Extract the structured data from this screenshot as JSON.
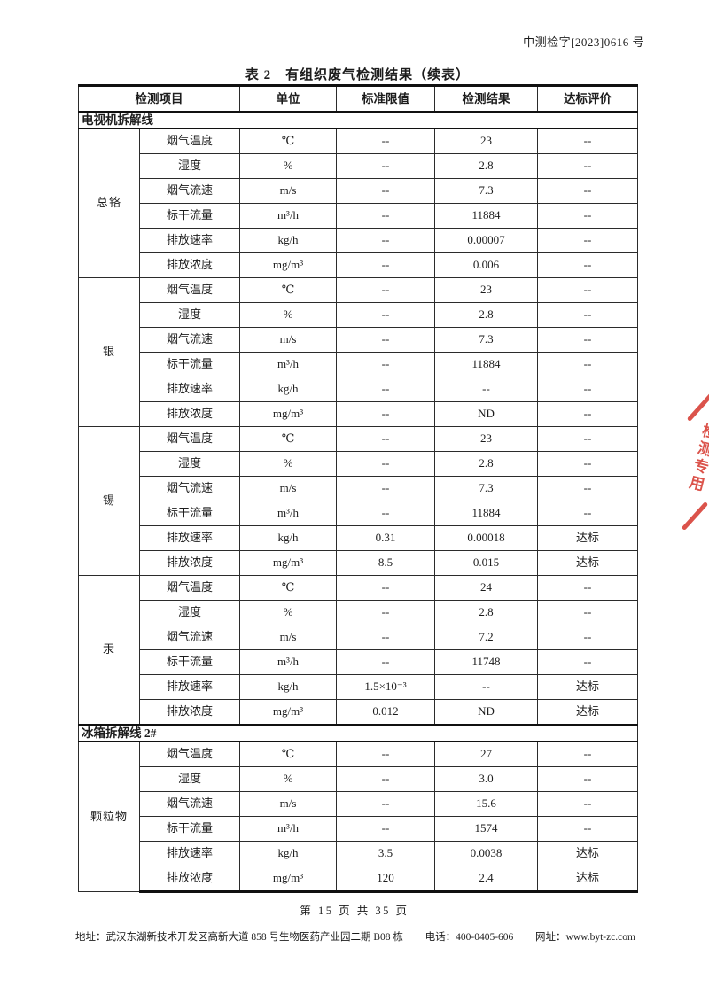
{
  "page": {
    "doc_number": "中测检字[2023]0616 号",
    "title": "表 2　有组织废气检测结果（续表）",
    "page_footer": "第 15 页 共 35 页",
    "contact": {
      "address": "地址：武汉东湖新技术开发区高新大道 858 号生物医药产业园二期 B08 栋",
      "phone": "电话：400-0405-606",
      "website": "网址：www.byt-zc.com"
    },
    "stamp": {
      "text": "检测专用",
      "color": "#d8453c"
    }
  },
  "table": {
    "headers": [
      "检测项目",
      "单位",
      "标准限值",
      "检测结果",
      "达标评价"
    ],
    "sections": [
      {
        "name": "电视机拆解线",
        "groups": [
          {
            "name": "总铬",
            "rows": [
              [
                "烟气温度",
                "℃",
                "--",
                "23",
                "--"
              ],
              [
                "湿度",
                "%",
                "--",
                "2.8",
                "--"
              ],
              [
                "烟气流速",
                "m/s",
                "--",
                "7.3",
                "--"
              ],
              [
                "标干流量",
                "m³/h",
                "--",
                "11884",
                "--"
              ],
              [
                "排放速率",
                "kg/h",
                "--",
                "0.00007",
                "--"
              ],
              [
                "排放浓度",
                "mg/m³",
                "--",
                "0.006",
                "--"
              ]
            ]
          },
          {
            "name": "银",
            "rows": [
              [
                "烟气温度",
                "℃",
                "--",
                "23",
                "--"
              ],
              [
                "湿度",
                "%",
                "--",
                "2.8",
                "--"
              ],
              [
                "烟气流速",
                "m/s",
                "--",
                "7.3",
                "--"
              ],
              [
                "标干流量",
                "m³/h",
                "--",
                "11884",
                "--"
              ],
              [
                "排放速率",
                "kg/h",
                "--",
                "--",
                "--"
              ],
              [
                "排放浓度",
                "mg/m³",
                "--",
                "ND",
                "--"
              ]
            ]
          },
          {
            "name": "锡",
            "rows": [
              [
                "烟气温度",
                "℃",
                "--",
                "23",
                "--"
              ],
              [
                "湿度",
                "%",
                "--",
                "2.8",
                "--"
              ],
              [
                "烟气流速",
                "m/s",
                "--",
                "7.3",
                "--"
              ],
              [
                "标干流量",
                "m³/h",
                "--",
                "11884",
                "--"
              ],
              [
                "排放速率",
                "kg/h",
                "0.31",
                "0.00018",
                "达标"
              ],
              [
                "排放浓度",
                "mg/m³",
                "8.5",
                "0.015",
                "达标"
              ]
            ]
          },
          {
            "name": "汞",
            "rows": [
              [
                "烟气温度",
                "℃",
                "--",
                "24",
                "--"
              ],
              [
                "湿度",
                "%",
                "--",
                "2.8",
                "--"
              ],
              [
                "烟气流速",
                "m/s",
                "--",
                "7.2",
                "--"
              ],
              [
                "标干流量",
                "m³/h",
                "--",
                "11748",
                "--"
              ],
              [
                "排放速率",
                "kg/h",
                "1.5×10⁻³",
                "--",
                "达标"
              ],
              [
                "排放浓度",
                "mg/m³",
                "0.012",
                "ND",
                "达标"
              ]
            ]
          }
        ]
      },
      {
        "name": "冰箱拆解线 2#",
        "groups": [
          {
            "name": "颗粒物",
            "rows": [
              [
                "烟气温度",
                "℃",
                "--",
                "27",
                "--"
              ],
              [
                "湿度",
                "%",
                "--",
                "3.0",
                "--"
              ],
              [
                "烟气流速",
                "m/s",
                "--",
                "15.6",
                "--"
              ],
              [
                "标干流量",
                "m³/h",
                "--",
                "1574",
                "--"
              ],
              [
                "排放速率",
                "kg/h",
                "3.5",
                "0.0038",
                "达标"
              ],
              [
                "排放浓度",
                "mg/m³",
                "120",
                "2.4",
                "达标"
              ]
            ]
          }
        ]
      }
    ]
  }
}
